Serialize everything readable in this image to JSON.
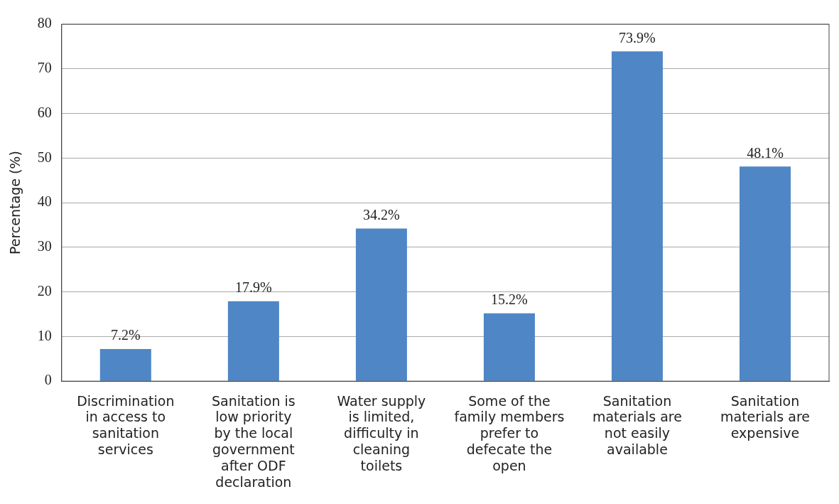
{
  "chart_data": {
    "type": "bar",
    "ylabel": "Percentage (%)",
    "categories": [
      "Discrimination in access to sanitation services",
      "Sanitation is low priority by the local government after ODF declaration",
      "Water supply is limited, difficulty in cleaning toilets",
      "Some of the family members prefer to defecate the open",
      "Sanitation materials are not easily available",
      "Sanitation materials are expensive"
    ],
    "values": [
      7.2,
      17.9,
      34.2,
      15.2,
      73.9,
      48.1
    ],
    "value_labels": [
      "7.2%",
      "17.9%",
      "34.2%",
      "15.2%",
      "73.9%",
      "48.1%"
    ],
    "color": "#4f86c6",
    "ylim": [
      0,
      80
    ],
    "yticks": [
      0,
      10,
      20,
      30,
      40,
      50,
      60,
      70,
      80
    ],
    "grid": "y",
    "legend": false
  }
}
